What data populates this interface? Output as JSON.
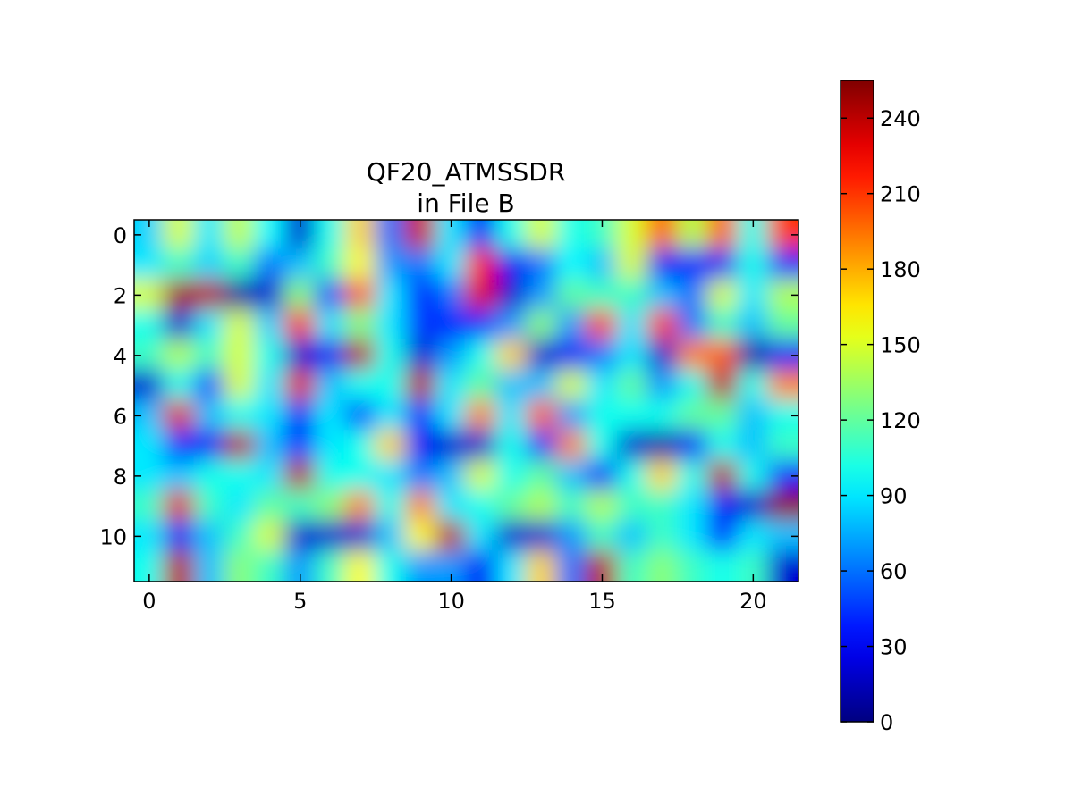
{
  "chart_data": {
    "type": "heatmap",
    "title_line1": "QF20_ATMSSDR",
    "title_line2": "in File B",
    "xlabel": "",
    "ylabel": "",
    "rows": 12,
    "cols": 22,
    "x_ticks": [
      0,
      5,
      10,
      15,
      20
    ],
    "y_ticks": [
      0,
      2,
      4,
      6,
      8,
      10
    ],
    "x_tick_labels": [
      "0",
      "5",
      "10",
      "15",
      "20"
    ],
    "y_tick_labels": [
      "0",
      "2",
      "4",
      "6",
      "8",
      "10"
    ],
    "xlim": [
      -0.5,
      21.5
    ],
    "ylim": [
      11.5,
      -0.5
    ],
    "colorbar": {
      "colormap": "jet",
      "vmin": 0,
      "vmax": 255,
      "ticks": [
        0,
        30,
        60,
        90,
        120,
        150,
        180,
        210,
        240
      ],
      "tick_labels": [
        "0",
        "30",
        "60",
        "90",
        "120",
        "150",
        "180",
        "210",
        "240"
      ]
    },
    "interpolation": "bilinear",
    "values": [
      [
        85,
        150,
        90,
        145,
        95,
        20,
        100,
        170,
        60,
        235,
        90,
        30,
        100,
        150,
        100,
        110,
        150,
        200,
        140,
        200,
        100,
        210
      ],
      [
        90,
        110,
        85,
        110,
        60,
        80,
        110,
        160,
        70,
        60,
        90,
        220,
        30,
        60,
        95,
        80,
        150,
        30,
        40,
        30,
        100,
        40
      ],
      [
        150,
        245,
        240,
        10,
        20,
        130,
        50,
        200,
        90,
        40,
        60,
        230,
        20,
        70,
        120,
        110,
        110,
        80,
        60,
        150,
        90,
        140
      ],
      [
        100,
        20,
        90,
        150,
        85,
        220,
        90,
        130,
        90,
        45,
        40,
        40,
        70,
        130,
        70,
        210,
        90,
        210,
        60,
        110,
        80,
        120
      ],
      [
        110,
        140,
        110,
        150,
        100,
        20,
        30,
        240,
        100,
        20,
        70,
        100,
        170,
        20,
        30,
        60,
        90,
        20,
        190,
        200,
        10,
        30
      ],
      [
        20,
        100,
        50,
        150,
        90,
        230,
        80,
        100,
        100,
        240,
        90,
        120,
        80,
        80,
        150,
        90,
        120,
        70,
        100,
        240,
        100,
        190
      ],
      [
        80,
        230,
        80,
        100,
        90,
        30,
        90,
        50,
        90,
        40,
        90,
        190,
        90,
        200,
        70,
        100,
        100,
        100,
        120,
        120,
        80,
        100
      ],
      [
        90,
        40,
        30,
        240,
        80,
        40,
        90,
        100,
        170,
        30,
        20,
        20,
        100,
        40,
        190,
        100,
        20,
        10,
        30,
        100,
        80,
        110
      ],
      [
        90,
        80,
        100,
        100,
        90,
        240,
        100,
        100,
        90,
        60,
        80,
        150,
        100,
        120,
        80,
        30,
        100,
        170,
        100,
        240,
        100,
        40
      ],
      [
        110,
        230,
        110,
        90,
        120,
        110,
        130,
        190,
        100,
        190,
        90,
        100,
        120,
        140,
        110,
        140,
        110,
        110,
        90,
        30,
        20,
        250
      ],
      [
        90,
        30,
        80,
        110,
        150,
        20,
        20,
        20,
        80,
        160,
        240,
        90,
        20,
        20,
        70,
        110,
        80,
        110,
        90,
        40,
        90,
        80
      ],
      [
        100,
        240,
        80,
        130,
        110,
        70,
        110,
        160,
        100,
        70,
        70,
        30,
        90,
        170,
        60,
        240,
        110,
        130,
        110,
        100,
        110,
        20
      ]
    ]
  }
}
